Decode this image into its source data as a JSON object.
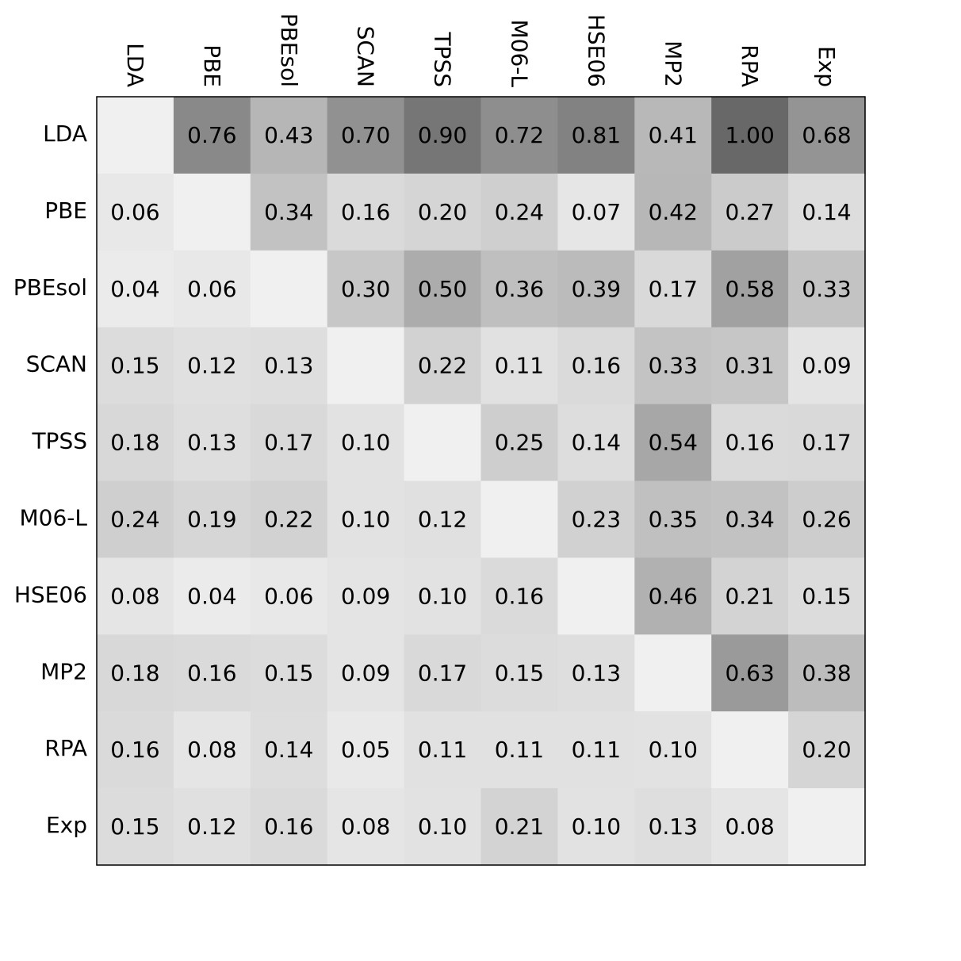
{
  "chart_data": {
    "type": "heatmap",
    "title": "",
    "xlabel": "",
    "ylabel": "",
    "x_tick_position": "top",
    "x_tick_rotation": "vertical",
    "grid": false,
    "colormap": "greys",
    "value_range": [
      0,
      1
    ],
    "diagonal": "empty",
    "columns": [
      "LDA",
      "PBE",
      "PBEsol",
      "SCAN",
      "TPSS",
      "M06-L",
      "HSE06",
      "MP2",
      "RPA",
      "Exp"
    ],
    "rows": [
      "LDA",
      "PBE",
      "PBEsol",
      "SCAN",
      "TPSS",
      "M06-L",
      "HSE06",
      "MP2",
      "RPA",
      "Exp"
    ],
    "values": [
      [
        null,
        0.76,
        0.43,
        0.7,
        0.9,
        0.72,
        0.81,
        0.41,
        1.0,
        0.68
      ],
      [
        0.06,
        null,
        0.34,
        0.16,
        0.2,
        0.24,
        0.07,
        0.42,
        0.27,
        0.14
      ],
      [
        0.04,
        0.06,
        null,
        0.3,
        0.5,
        0.36,
        0.39,
        0.17,
        0.58,
        0.33
      ],
      [
        0.15,
        0.12,
        0.13,
        null,
        0.22,
        0.11,
        0.16,
        0.33,
        0.31,
        0.09
      ],
      [
        0.18,
        0.13,
        0.17,
        0.1,
        null,
        0.25,
        0.14,
        0.54,
        0.16,
        0.17
      ],
      [
        0.24,
        0.19,
        0.22,
        0.1,
        0.12,
        null,
        0.23,
        0.35,
        0.34,
        0.26
      ],
      [
        0.08,
        0.04,
        0.06,
        0.09,
        0.1,
        0.16,
        null,
        0.46,
        0.21,
        0.15
      ],
      [
        0.18,
        0.16,
        0.15,
        0.09,
        0.17,
        0.15,
        0.13,
        null,
        0.63,
        0.38
      ],
      [
        0.16,
        0.08,
        0.14,
        0.05,
        0.11,
        0.11,
        0.11,
        0.1,
        null,
        0.2
      ],
      [
        0.15,
        0.12,
        0.16,
        0.08,
        0.1,
        0.21,
        0.1,
        0.13,
        0.08,
        null
      ]
    ],
    "colors": {
      "low": "#f0f0f0",
      "high": "#686868",
      "text": "#000000",
      "frame": "#000000",
      "background": "#ffffff"
    }
  }
}
